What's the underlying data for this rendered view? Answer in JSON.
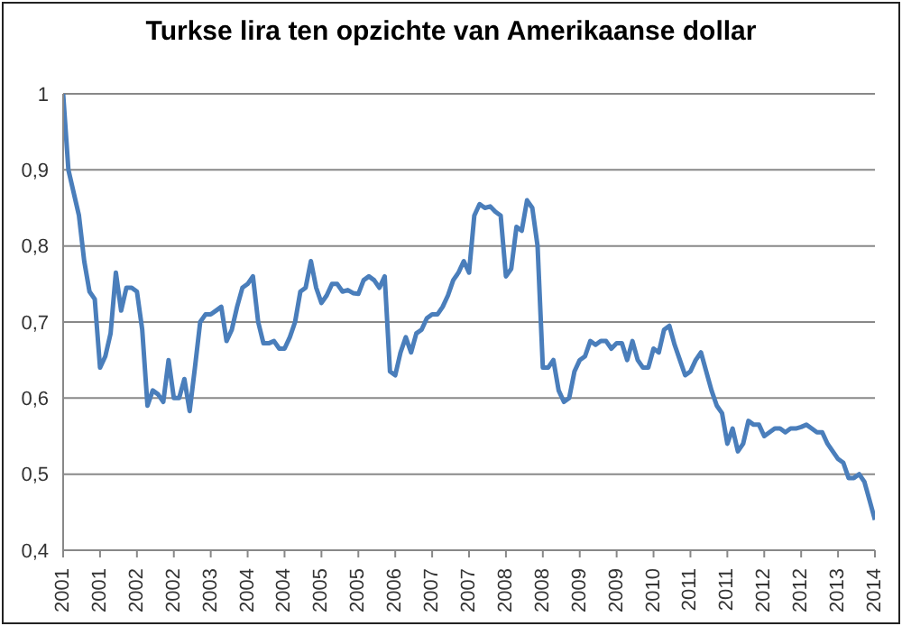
{
  "chart_data": {
    "type": "line",
    "title": "Turkse lira ten opzichte van Amerikaanse dollar",
    "categories": [
      "2001",
      null,
      null,
      null,
      null,
      null,
      null,
      "2001",
      null,
      null,
      null,
      null,
      null,
      null,
      "2002",
      null,
      null,
      null,
      null,
      null,
      null,
      "2002",
      null,
      null,
      null,
      null,
      null,
      null,
      "2003",
      null,
      null,
      null,
      null,
      null,
      null,
      "2004",
      null,
      null,
      null,
      null,
      null,
      null,
      "2004",
      null,
      null,
      null,
      null,
      null,
      null,
      "2005",
      null,
      null,
      null,
      null,
      null,
      null,
      "2005",
      null,
      null,
      null,
      null,
      null,
      null,
      "2006",
      null,
      null,
      null,
      null,
      null,
      null,
      "2007",
      null,
      null,
      null,
      null,
      null,
      null,
      "2007",
      null,
      null,
      null,
      null,
      null,
      null,
      "2008",
      null,
      null,
      null,
      null,
      null,
      null,
      "2008",
      null,
      null,
      null,
      null,
      null,
      null,
      "2009",
      null,
      null,
      null,
      null,
      null,
      null,
      "2009",
      null,
      null,
      null,
      null,
      null,
      null,
      "2010",
      null,
      null,
      null,
      null,
      null,
      null,
      "2011",
      null,
      null,
      null,
      null,
      null,
      null,
      "2011",
      null,
      null,
      null,
      null,
      null,
      null,
      "2012",
      null,
      null,
      null,
      null,
      null,
      null,
      "2012",
      null,
      null,
      null,
      null,
      null,
      null,
      "2013",
      null,
      null,
      null,
      null,
      null,
      null,
      "2014"
    ],
    "series": [
      {
        "color": "#4a7ebb",
        "values": [
          1.0,
          0.9,
          0.87,
          0.84,
          0.78,
          0.74,
          0.73,
          0.64,
          0.655,
          0.685,
          0.765,
          0.715,
          0.745,
          0.745,
          0.74,
          0.69,
          0.59,
          0.61,
          0.605,
          0.595,
          0.65,
          0.6,
          0.6,
          0.625,
          0.583,
          0.64,
          0.7,
          0.71,
          0.71,
          0.715,
          0.72,
          0.675,
          0.69,
          0.72,
          0.745,
          0.75,
          0.76,
          0.7,
          0.672,
          0.672,
          0.675,
          0.665,
          0.665,
          0.68,
          0.7,
          0.74,
          0.745,
          0.78,
          0.745,
          0.725,
          0.735,
          0.75,
          0.75,
          0.74,
          0.742,
          0.738,
          0.737,
          0.755,
          0.76,
          0.755,
          0.745,
          0.76,
          0.635,
          0.63,
          0.66,
          0.68,
          0.66,
          0.685,
          0.69,
          0.705,
          0.71,
          0.71,
          0.72,
          0.735,
          0.755,
          0.765,
          0.78,
          0.765,
          0.84,
          0.855,
          0.85,
          0.852,
          0.845,
          0.84,
          0.76,
          0.77,
          0.825,
          0.82,
          0.86,
          0.85,
          0.8,
          0.64,
          0.64,
          0.65,
          0.61,
          0.595,
          0.6,
          0.635,
          0.65,
          0.655,
          0.675,
          0.67,
          0.675,
          0.675,
          0.665,
          0.672,
          0.672,
          0.65,
          0.675,
          0.65,
          0.64,
          0.64,
          0.665,
          0.66,
          0.69,
          0.695,
          0.67,
          0.65,
          0.63,
          0.635,
          0.65,
          0.66,
          0.635,
          0.61,
          0.59,
          0.58,
          0.54,
          0.56,
          0.53,
          0.54,
          0.57,
          0.565,
          0.565,
          0.55,
          0.555,
          0.56,
          0.56,
          0.555,
          0.56,
          0.56,
          0.562,
          0.565,
          0.56,
          0.555,
          0.555,
          0.54,
          0.53,
          0.52,
          0.515,
          0.495,
          0.495,
          0.5,
          0.49,
          0.465,
          0.44
        ]
      }
    ],
    "ylim": [
      0.4,
      1
    ],
    "yticks": [
      {
        "value": 0.4,
        "label": "0,4"
      },
      {
        "value": 0.5,
        "label": "0,5"
      },
      {
        "value": 0.6,
        "label": "0,6"
      },
      {
        "value": 0.7,
        "label": "0,7"
      },
      {
        "value": 0.8,
        "label": "0,8"
      },
      {
        "value": 0.9,
        "label": "0,9"
      },
      1
    ],
    "grid": "y",
    "legend": false,
    "marker": "none",
    "line_style": "solid"
  }
}
